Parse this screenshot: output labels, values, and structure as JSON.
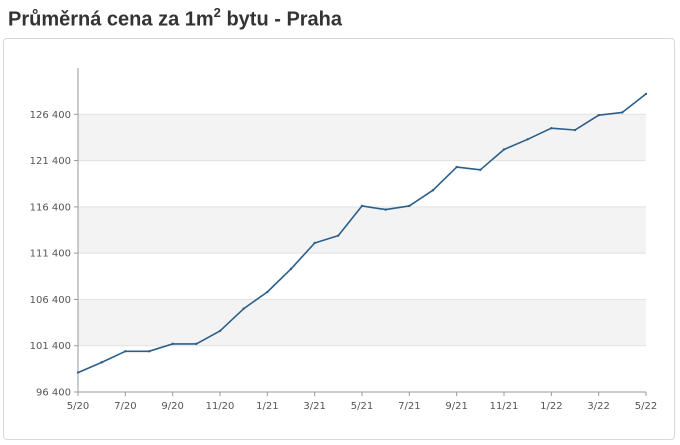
{
  "title": {
    "prefix": "Průměrná cena za 1m",
    "superscript": "2",
    "suffix": " bytu - Praha"
  },
  "chart_data": {
    "type": "line",
    "title": "Průměrná cena za 1m² bytu - Praha",
    "xlabel": "",
    "ylabel": "",
    "ylim": [
      96400,
      131400
    ],
    "y_ticks": [
      96400,
      101400,
      106400,
      111400,
      116400,
      121400,
      126400
    ],
    "y_tick_labels": [
      "96 400",
      "101 400",
      "106 400",
      "111 400",
      "116 400",
      "121 400",
      "126 400"
    ],
    "x_tick_labels": [
      "5/20",
      "7/20",
      "9/20",
      "11/20",
      "1/21",
      "3/21",
      "5/21",
      "7/21",
      "9/21",
      "11/21",
      "1/22",
      "3/22",
      "5/22"
    ],
    "grid": true,
    "line_color": "#2b5f8a",
    "band_color": "#f3f3f3",
    "series": [
      {
        "x": [
          "5/20",
          "6/20",
          "7/20",
          "8/20",
          "9/20",
          "10/20",
          "11/20",
          "12/20",
          "1/21",
          "2/21",
          "3/21",
          "4/21",
          "5/21",
          "6/21",
          "7/21",
          "8/21",
          "9/21",
          "10/21",
          "11/21",
          "12/21",
          "1/22",
          "2/22",
          "3/22",
          "4/22",
          "5/22"
        ],
        "values": [
          98500,
          99600,
          100800,
          100800,
          101600,
          101600,
          103000,
          105400,
          107200,
          109700,
          112500,
          113300,
          116500,
          116100,
          116500,
          118200,
          120700,
          120400,
          122600,
          123700,
          124900,
          124700,
          126300,
          126600,
          128600
        ]
      }
    ]
  }
}
